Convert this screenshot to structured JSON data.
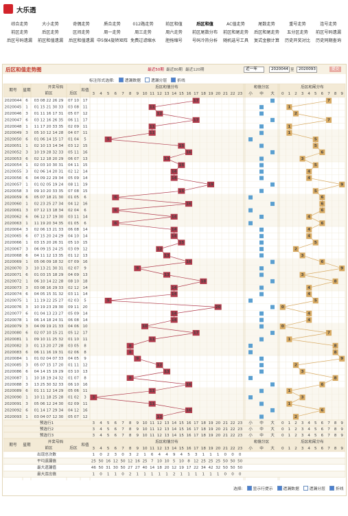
{
  "header": {
    "logo": "大乐透"
  },
  "nav": [
    "综合走势",
    "大小走势",
    "奇偶走势",
    "质合走势",
    "012路走势",
    "前区和值",
    "后区和值",
    "AC值走势",
    "尾数走势",
    "重号走势",
    "连号走势",
    "前区走势",
    "后区走势",
    "区间走势",
    "周一走势",
    "周三走势",
    "周六走势",
    "前区尾数分布",
    "前区和尾走势",
    "后区和尾走势",
    "五分区走势",
    "前区号码遗漏",
    "后区号码遗漏",
    "前区和值遗漏",
    "后区和值遗漏",
    "中5保4旋转矩阵",
    "免费过滤缩水",
    "胆拖缩号",
    "号码冷热分析",
    "随机选号工具",
    "复式金额计算",
    "历史开奖对比",
    "历史同期查询"
  ],
  "active_nav": 6,
  "panel": {
    "title": "后区和值走势图",
    "ranges": [
      "最近50期",
      "最近80期",
      "最近120期"
    ],
    "period_select": "近一年",
    "from": "2020044",
    "to_label": "至",
    "to": "2020093",
    "submit": "提交"
  },
  "options": {
    "label": "标注形式选择:",
    "items": [
      {
        "text": "遗漏数据",
        "checked": true
      },
      {
        "text": "遗漏分层",
        "checked": false
      },
      {
        "text": "折线",
        "checked": true
      }
    ]
  },
  "table": {
    "headers": {
      "issue": "期号",
      "week": "星期",
      "draw": "开奖号码",
      "front": "前区",
      "back": "后区",
      "sum": "和值",
      "sum_dist": "后区和值分布",
      "zone": "和值分区",
      "tail_dist": "后区和尾分布"
    },
    "sum_axis": [
      3,
      4,
      5,
      6,
      7,
      8,
      9,
      10,
      11,
      12,
      13,
      14,
      15,
      16,
      17,
      18,
      19,
      20,
      21,
      22,
      23
    ],
    "zones": [
      "小",
      "中",
      "大"
    ],
    "tail_axis": [
      0,
      1,
      2,
      3,
      4,
      5,
      6,
      7,
      8,
      9
    ],
    "issues": [
      "2020044",
      "2020045",
      "2020046",
      "2020047",
      "2020048",
      "2020049",
      "2020050",
      "2020051",
      "2020052",
      "2020053",
      "2020054",
      "2020055",
      "2020056",
      "2020057",
      "2020058",
      "2020059",
      "2020060",
      "2020061",
      "2020062",
      "2020063",
      "2020064",
      "2020065",
      "2020066",
      "2020067",
      "2020068",
      "2020069",
      "2020070",
      "2020071",
      "2020072",
      "2020073",
      "2020074",
      "2020075",
      "2020076",
      "2020077",
      "2020078",
      "2020079",
      "2020080",
      "2020081",
      "2020082",
      "2020083",
      "2020084",
      "2020085",
      "2020086",
      "2020087",
      "2020088",
      "2020089",
      "2020090",
      "2020091",
      "2020092",
      "2020093"
    ],
    "weeks": [
      6,
      1,
      3,
      6,
      1,
      3,
      6,
      1,
      3,
      6,
      1,
      3,
      6,
      1,
      3,
      6,
      1,
      3,
      6,
      1,
      3,
      6,
      1,
      3,
      6,
      1,
      3,
      6,
      1,
      3,
      6,
      1,
      3,
      6,
      1,
      3,
      6,
      1,
      3,
      6,
      1,
      3,
      6,
      1,
      3,
      6,
      1,
      3,
      6,
      1
    ],
    "fronts": [
      "03 08 22 26 29",
      "01 15 21 30 33",
      "01 11 16 17 31",
      "03 12 16 26 35",
      "11 17 20 33 35",
      "05 10 12 14 28",
      "01 06 14 15 17",
      "02 10 13 14 34",
      "10 19 28 32 33",
      "02 12 18 20 29",
      "02 03 10 30 31",
      "02 06 14 20 31",
      "04 09 22 29 34",
      "01 02 05 19 24",
      "09 10 20 33 35",
      "05 07 18 21 30",
      "02 23 25 27 34",
      "07 12 13 18 34",
      "06 12 17 19 30",
      "11 19 20 34 35",
      "02 06 13 21 33",
      "07 15 20 24 29",
      "03 15 20 26 31",
      "06 09 15 24 25",
      "04 11 12 13 35",
      "05 06 09 18 32",
      "10 13 21 30 31",
      "01 03 15 18 29",
      "06 10 14 22 28",
      "03 08 16 29 33",
      "04 05 15 31 32",
      "11 19 22 25 27",
      "10 19 23 29 30",
      "01 04 13 23 27",
      "06 14 18 24 31",
      "04 09 19 21 33",
      "02 07 10 15 21",
      "09 10 11 25 32",
      "01 13 20 27 28",
      "06 11 16 19 31",
      "01 02 04 07 33",
      "05 07 15 17 20",
      "04 14 15 19 29",
      "10 18 19 24 32",
      "13 25 30 32 33",
      "01 11 12 14 29",
      "10 11 18 25 28",
      "05 06 12 24 30",
      "01 14 17 29 34",
      "03 04 07 12 30"
    ],
    "backs": [
      "07 10",
      "03 08",
      "05 07",
      "06 11",
      "02 09",
      "04 07",
      "01 04",
      "03 12",
      "05 11",
      "06 07",
      "04 11",
      "02 12",
      "05 09",
      "08 11",
      "07 08",
      "01 05",
      "04 12",
      "02 04",
      "03 11",
      "01 05",
      "06 08",
      "04 10",
      "05 10",
      "03 09",
      "01 12",
      "07 09",
      "02 07",
      "04 09",
      "08 10",
      "02 12",
      "03 11",
      "02 03",
      "09 11",
      "05 09",
      "06 08",
      "04 06",
      "05 12",
      "01 10",
      "03 05",
      "02 06",
      "04 05",
      "01 11",
      "03 10",
      "01 07",
      "06 10",
      "05 06",
      "01 02",
      "02 09",
      "04 12",
      "05 07"
    ],
    "sums": [
      17,
      11,
      12,
      17,
      11,
      11,
      5,
      15,
      16,
      13,
      15,
      14,
      14,
      19,
      15,
      6,
      16,
      6,
      14,
      6,
      14,
      14,
      15,
      12,
      13,
      16,
      9,
      13,
      18,
      14,
      14,
      5,
      20,
      14,
      14,
      10,
      17,
      11,
      8,
      8,
      9,
      12,
      13,
      8,
      16,
      11,
      3,
      11,
      16,
      12
    ],
    "tails": [
      7,
      1,
      2,
      7,
      1,
      1,
      5,
      5,
      6,
      3,
      5,
      4,
      4,
      9,
      5,
      6,
      6,
      6,
      4,
      6,
      4,
      4,
      5,
      2,
      3,
      6,
      9,
      3,
      8,
      4,
      4,
      5,
      0,
      4,
      4,
      0,
      7,
      1,
      8,
      8,
      9,
      2,
      3,
      8,
      6,
      1,
      3,
      1,
      6,
      2
    ]
  },
  "preselect": [
    "预选行1",
    "预选行2",
    "预选行3"
  ],
  "stats": {
    "labels": [
      "出现总次数",
      "平均遗漏值",
      "最大遗漏值",
      "最大连出值"
    ],
    "rows": [
      [
        1,
        0,
        2,
        3,
        0,
        3,
        2,
        1,
        6,
        4,
        4,
        9,
        4,
        5,
        3,
        1,
        1,
        1,
        0,
        0,
        0
      ],
      [
        25,
        50,
        16,
        12,
        50,
        12,
        16,
        25,
        7,
        10,
        10,
        5,
        10,
        8,
        12,
        25,
        25,
        25,
        50,
        50,
        50
      ],
      [
        46,
        50,
        31,
        30,
        50,
        27,
        27,
        40,
        14,
        18,
        20,
        12,
        19,
        17,
        22,
        34,
        42,
        32,
        50,
        50,
        50
      ],
      [
        1,
        0,
        1,
        1,
        0,
        2,
        1,
        1,
        1,
        1,
        1,
        2,
        1,
        1,
        1,
        1,
        1,
        1,
        0,
        0,
        0
      ]
    ]
  },
  "footer": {
    "label": "选择:",
    "items": [
      {
        "text": "显示行提示",
        "checked": true
      },
      {
        "text": "遗漏数据",
        "checked": true
      },
      {
        "text": "遗漏分层",
        "checked": false
      },
      {
        "text": "折线",
        "checked": true
      }
    ]
  }
}
